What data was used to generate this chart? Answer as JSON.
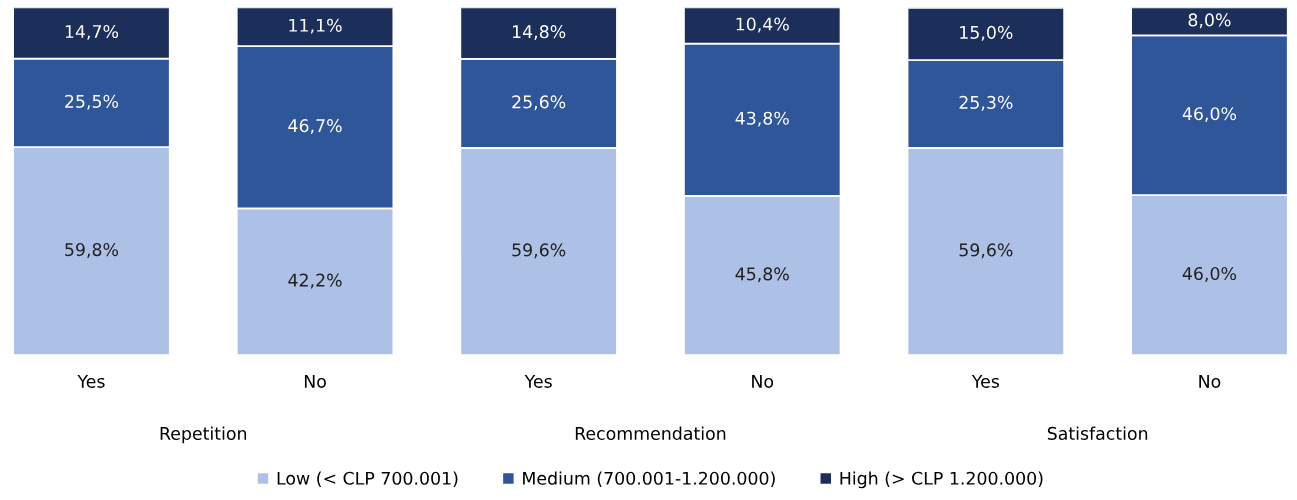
{
  "chart_data": {
    "type": "bar",
    "stacked": true,
    "categories": [
      "Yes",
      "No",
      "Yes",
      "No",
      "Yes",
      "No"
    ],
    "annotations": [
      "Repetition",
      "Recommendation",
      "Satisfaction"
    ],
    "series": [
      {
        "name": "Low (< CLP 700.001)",
        "color": "#adc0e6",
        "values": [
          59.8,
          42.2,
          59.6,
          45.8,
          59.6,
          46.0
        ],
        "value_labels": [
          "59,8%",
          "42,2%",
          "59,6%",
          "45,8%",
          "59,6%",
          "46,0%"
        ]
      },
      {
        "name": "Medium (700.001-1.200.000)",
        "color": "#2f5699",
        "values": [
          25.5,
          46.7,
          25.6,
          43.8,
          25.3,
          46.0
        ],
        "value_labels": [
          "25,5%",
          "46,7%",
          "25,6%",
          "43,8%",
          "25,3%",
          "46,0%"
        ]
      },
      {
        "name": "High (> CLP 1.200.000)",
        "color": "#1c2f5a",
        "values": [
          14.7,
          11.1,
          14.8,
          10.4,
          15.0,
          8.0
        ],
        "value_labels": [
          "14,7%",
          "11,1%",
          "14,8%",
          "10,4%",
          "15,0%",
          "8,0%"
        ]
      }
    ],
    "legend": "bottom",
    "grid": false
  }
}
